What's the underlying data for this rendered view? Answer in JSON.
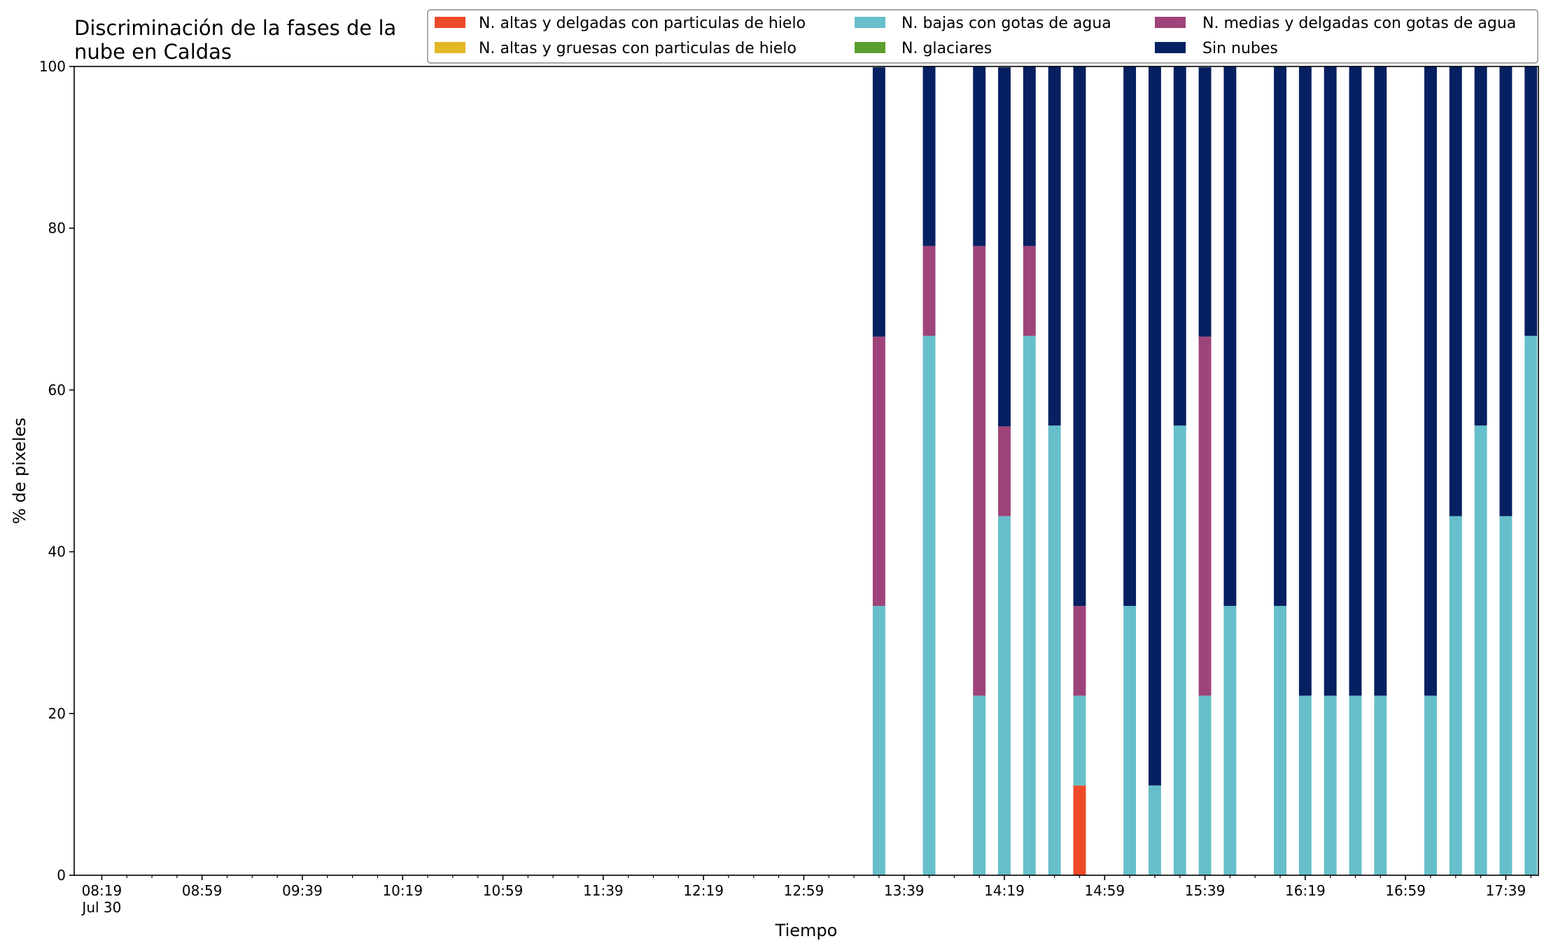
{
  "chart_data": {
    "type": "bar",
    "stacked": true,
    "title_lines": [
      "Discriminación de la fases de la",
      "nube en Caldas"
    ],
    "xlabel": "Tiempo",
    "ylabel": "% de pixeles",
    "ylim": [
      0,
      100
    ],
    "yticks": [
      "0",
      "20",
      "40",
      "60",
      "80",
      "100"
    ],
    "xlim_minutes": [
      488,
      1072
    ],
    "xtick_labels": [
      {
        "t": 499,
        "label": "08:19",
        "sub": "Jul 30"
      },
      {
        "t": 539,
        "label": "08:59"
      },
      {
        "t": 579,
        "label": "09:39"
      },
      {
        "t": 619,
        "label": "10:19"
      },
      {
        "t": 659,
        "label": "10:59"
      },
      {
        "t": 699,
        "label": "11:39"
      },
      {
        "t": 739,
        "label": "12:19"
      },
      {
        "t": 779,
        "label": "12:59"
      },
      {
        "t": 819,
        "label": "13:39"
      },
      {
        "t": 859,
        "label": "14:19"
      },
      {
        "t": 899,
        "label": "14:59"
      },
      {
        "t": 939,
        "label": "15:39"
      },
      {
        "t": 979,
        "label": "16:19"
      },
      {
        "t": 1019,
        "label": "16:59"
      },
      {
        "t": 1059,
        "label": "17:39"
      }
    ],
    "minor_tick_step_minutes": 10,
    "bar_width_minutes": 5,
    "legend": {
      "placement": "top-right",
      "columns": 3
    },
    "series": [
      {
        "name": "N. altas y delgadas con particulas de hielo",
        "color": "#ee4a2a"
      },
      {
        "name": "N. altas y gruesas con particulas de hielo",
        "color": "#e2b825"
      },
      {
        "name": "N. bajas con gotas de agua",
        "color": "#66bfca"
      },
      {
        "name": "N. glaciares",
        "color": "#5c9e2e"
      },
      {
        "name": "N. medias y delgadas con gotas de agua",
        "color": "#9e447a"
      },
      {
        "name": "Sin nubes",
        "color": "#062061"
      }
    ],
    "bars": [
      {
        "time": "13:29",
        "values": [
          0,
          0,
          33.3,
          0,
          33.3,
          33.3
        ]
      },
      {
        "time": "13:49",
        "values": [
          0,
          0,
          66.7,
          0,
          11.1,
          22.2
        ]
      },
      {
        "time": "14:09",
        "values": [
          0,
          0,
          22.2,
          0,
          55.6,
          22.2
        ]
      },
      {
        "time": "14:19",
        "values": [
          0,
          0,
          44.4,
          0,
          11.1,
          44.4
        ]
      },
      {
        "time": "14:29",
        "values": [
          0,
          0,
          66.7,
          0,
          11.1,
          22.2
        ]
      },
      {
        "time": "14:39",
        "values": [
          0,
          0,
          55.6,
          0,
          0,
          44.4
        ]
      },
      {
        "time": "14:49",
        "values": [
          11.1,
          0,
          11.1,
          0,
          11.1,
          66.7
        ]
      },
      {
        "time": "15:09",
        "values": [
          0,
          0,
          33.3,
          0,
          0,
          66.7
        ]
      },
      {
        "time": "15:19",
        "values": [
          0,
          0,
          11.1,
          0,
          0,
          88.9
        ]
      },
      {
        "time": "15:29",
        "values": [
          0,
          0,
          55.6,
          0,
          0,
          44.4
        ]
      },
      {
        "time": "15:39",
        "values": [
          0,
          0,
          22.2,
          0,
          44.4,
          33.3
        ]
      },
      {
        "time": "15:49",
        "values": [
          0,
          0,
          33.3,
          0,
          0,
          66.7
        ]
      },
      {
        "time": "16:09",
        "values": [
          0,
          0,
          33.3,
          0,
          0,
          66.7
        ]
      },
      {
        "time": "16:19",
        "values": [
          0,
          0,
          22.2,
          0,
          0,
          77.8
        ]
      },
      {
        "time": "16:29",
        "values": [
          0,
          0,
          22.2,
          0,
          0,
          77.8
        ]
      },
      {
        "time": "16:39",
        "values": [
          0,
          0,
          22.2,
          0,
          0,
          77.8
        ]
      },
      {
        "time": "16:49",
        "values": [
          0,
          0,
          22.2,
          0,
          0,
          77.8
        ]
      },
      {
        "time": "17:09",
        "values": [
          0,
          0,
          22.2,
          0,
          0,
          77.8
        ]
      },
      {
        "time": "17:19",
        "values": [
          0,
          0,
          44.4,
          0,
          0,
          55.6
        ]
      },
      {
        "time": "17:29",
        "values": [
          0,
          0,
          55.6,
          0,
          0,
          44.4
        ]
      },
      {
        "time": "17:39",
        "values": [
          0,
          0,
          44.4,
          0,
          0,
          55.6
        ]
      },
      {
        "time": "17:49",
        "values": [
          0,
          0,
          66.7,
          0,
          0,
          33.3
        ]
      }
    ]
  }
}
